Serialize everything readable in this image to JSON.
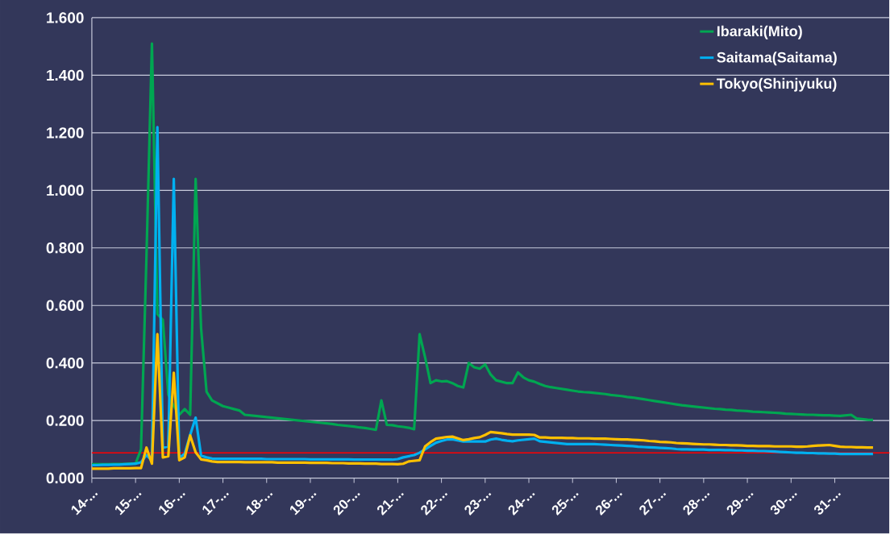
{
  "chart_data": {
    "type": "line",
    "categories": [
      "14-...",
      null,
      null,
      null,
      null,
      null,
      null,
      null,
      "15-...",
      null,
      null,
      null,
      null,
      null,
      null,
      null,
      "16-...",
      null,
      null,
      null,
      null,
      null,
      null,
      null,
      "17-...",
      null,
      null,
      null,
      null,
      null,
      null,
      null,
      "18-...",
      null,
      null,
      null,
      null,
      null,
      null,
      null,
      "19-...",
      null,
      null,
      null,
      null,
      null,
      null,
      null,
      "20-...",
      null,
      null,
      null,
      null,
      null,
      null,
      null,
      "21-...",
      null,
      null,
      null,
      null,
      null,
      null,
      null,
      "22-...",
      null,
      null,
      null,
      null,
      null,
      null,
      null,
      "23-...",
      null,
      null,
      null,
      null,
      null,
      null,
      null,
      "24-...",
      null,
      null,
      null,
      null,
      null,
      null,
      null,
      "25-...",
      null,
      null,
      null,
      null,
      null,
      null,
      null,
      "26-...",
      null,
      null,
      null,
      null,
      null,
      null,
      null,
      "27-...",
      null,
      null,
      null,
      null,
      null,
      null,
      null,
      "28-...",
      null,
      null,
      null,
      null,
      null,
      null,
      null,
      "29-...",
      null,
      null,
      null,
      null,
      null,
      null,
      null,
      "30-...",
      null,
      null,
      null,
      null,
      null,
      null,
      null,
      "31-...",
      null,
      null,
      null,
      null,
      null,
      null,
      null,
      null,
      null,
      null
    ],
    "ylim": [
      0,
      1.6
    ],
    "yticks": [
      {
        "value": 0,
        "label": "0.000"
      },
      {
        "value": 0.2,
        "label": "0.200"
      },
      {
        "value": 0.4,
        "label": "0.400"
      },
      {
        "value": 0.6,
        "label": "0.600"
      },
      {
        "value": 0.8,
        "label": "0.800"
      },
      {
        "value": 1.0,
        "label": "1.000"
      },
      {
        "value": 1.2,
        "label": "1.200"
      },
      {
        "value": 1.4,
        "label": "1.400"
      },
      {
        "value": 1.6,
        "label": "1.600"
      }
    ],
    "grid": "y",
    "legend": "top right",
    "marker": "none",
    "line_style": "solid",
    "ref_lines": [
      {
        "axis": "y",
        "value": 0.088,
        "color": "#ff0000"
      }
    ],
    "series": [
      {
        "name": "Ibaraki(Mito)",
        "color": "#00a651",
        "values": [
          0.048,
          0.048,
          0.048,
          0.048,
          0.049,
          0.049,
          0.049,
          0.05,
          0.05,
          0.1,
          0.77,
          1.51,
          0.57,
          0.55,
          0.29,
          0.25,
          0.22,
          0.24,
          0.22,
          1.04,
          0.52,
          0.3,
          0.27,
          0.26,
          0.25,
          0.245,
          0.24,
          0.235,
          0.22,
          0.218,
          0.216,
          0.214,
          0.212,
          0.21,
          0.208,
          0.206,
          0.204,
          0.202,
          0.2,
          0.198,
          0.196,
          0.194,
          0.192,
          0.19,
          0.188,
          0.185,
          0.183,
          0.181,
          0.179,
          0.176,
          0.174,
          0.171,
          0.168,
          0.27,
          0.185,
          0.184,
          0.18,
          0.178,
          0.175,
          0.17,
          0.5,
          0.42,
          0.33,
          0.34,
          0.336,
          0.337,
          0.33,
          0.32,
          0.315,
          0.4,
          0.385,
          0.38,
          0.395,
          0.36,
          0.34,
          0.335,
          0.33,
          0.33,
          0.367,
          0.35,
          0.34,
          0.335,
          0.327,
          0.32,
          0.316,
          0.313,
          0.31,
          0.307,
          0.304,
          0.301,
          0.299,
          0.298,
          0.296,
          0.294,
          0.292,
          0.289,
          0.287,
          0.285,
          0.282,
          0.28,
          0.277,
          0.274,
          0.271,
          0.268,
          0.265,
          0.262,
          0.259,
          0.256,
          0.253,
          0.251,
          0.249,
          0.247,
          0.245,
          0.243,
          0.241,
          0.24,
          0.238,
          0.237,
          0.235,
          0.234,
          0.233,
          0.231,
          0.23,
          0.229,
          0.228,
          0.227,
          0.226,
          0.224,
          0.223,
          0.222,
          0.221,
          0.22,
          0.22,
          0.219,
          0.218,
          0.218,
          0.217,
          0.216,
          0.218,
          0.22,
          0.207,
          0.205,
          0.203,
          0.202,
          null,
          null,
          null
        ]
      },
      {
        "name": "Saitama(Saitama)",
        "color": "#00b0f0",
        "values": [
          0.045,
          0.045,
          0.046,
          0.046,
          0.047,
          0.047,
          0.048,
          0.049,
          0.05,
          0.055,
          0.08,
          0.06,
          1.22,
          0.105,
          0.11,
          1.04,
          0.07,
          0.085,
          0.15,
          0.21,
          0.078,
          0.072,
          0.068,
          0.067,
          0.067,
          0.067,
          0.067,
          0.067,
          0.067,
          0.067,
          0.067,
          0.067,
          0.066,
          0.066,
          0.066,
          0.066,
          0.066,
          0.066,
          0.066,
          0.066,
          0.065,
          0.065,
          0.065,
          0.065,
          0.065,
          0.065,
          0.065,
          0.065,
          0.064,
          0.064,
          0.064,
          0.064,
          0.064,
          0.064,
          0.064,
          0.064,
          0.066,
          0.072,
          0.076,
          0.08,
          0.088,
          0.1,
          0.112,
          0.123,
          0.129,
          0.134,
          0.135,
          0.131,
          0.127,
          0.127,
          0.127,
          0.127,
          0.127,
          0.134,
          0.137,
          0.133,
          0.13,
          0.128,
          0.131,
          0.133,
          0.135,
          0.137,
          0.128,
          0.126,
          0.124,
          0.122,
          0.12,
          0.118,
          0.118,
          0.118,
          0.118,
          0.118,
          0.118,
          0.117,
          0.116,
          0.115,
          0.114,
          0.113,
          0.112,
          0.111,
          0.109,
          0.108,
          0.107,
          0.106,
          0.105,
          0.104,
          0.103,
          0.101,
          0.1,
          0.1,
          0.099,
          0.099,
          0.099,
          0.098,
          0.098,
          0.098,
          0.097,
          0.097,
          0.096,
          0.096,
          0.095,
          0.095,
          0.094,
          0.094,
          0.093,
          0.092,
          0.091,
          0.09,
          0.089,
          0.088,
          0.088,
          0.087,
          0.087,
          0.086,
          0.086,
          0.085,
          0.085,
          0.084,
          0.084,
          0.084,
          0.084,
          0.084,
          0.084,
          0.084,
          null,
          null,
          null
        ]
      },
      {
        "name": "Tokyo(Shinjyuku)",
        "color": "#ffc000",
        "values": [
          0.033,
          0.033,
          0.033,
          0.033,
          0.034,
          0.034,
          0.034,
          0.034,
          0.035,
          0.035,
          0.106,
          0.05,
          0.5,
          0.072,
          0.076,
          0.366,
          0.062,
          0.072,
          0.148,
          0.09,
          0.065,
          0.062,
          0.058,
          0.056,
          0.056,
          0.056,
          0.056,
          0.056,
          0.055,
          0.055,
          0.055,
          0.055,
          0.055,
          0.055,
          0.054,
          0.054,
          0.054,
          0.054,
          0.054,
          0.054,
          0.053,
          0.053,
          0.053,
          0.053,
          0.052,
          0.052,
          0.052,
          0.051,
          0.051,
          0.051,
          0.05,
          0.05,
          0.05,
          0.049,
          0.049,
          0.049,
          0.048,
          0.05,
          0.058,
          0.06,
          0.062,
          0.11,
          0.125,
          0.137,
          0.14,
          0.143,
          0.144,
          0.138,
          0.132,
          0.135,
          0.139,
          0.142,
          0.15,
          0.16,
          0.158,
          0.156,
          0.153,
          0.151,
          0.151,
          0.151,
          0.151,
          0.15,
          0.141,
          0.141,
          0.14,
          0.14,
          0.14,
          0.139,
          0.139,
          0.138,
          0.138,
          0.138,
          0.137,
          0.137,
          0.137,
          0.136,
          0.135,
          0.134,
          0.134,
          0.133,
          0.132,
          0.131,
          0.129,
          0.128,
          0.126,
          0.125,
          0.124,
          0.122,
          0.121,
          0.12,
          0.119,
          0.118,
          0.117,
          0.117,
          0.116,
          0.115,
          0.115,
          0.114,
          0.114,
          0.113,
          0.112,
          0.112,
          0.111,
          0.111,
          0.111,
          0.11,
          0.11,
          0.11,
          0.11,
          0.109,
          0.109,
          0.11,
          0.112,
          0.113,
          0.114,
          0.115,
          0.112,
          0.109,
          0.108,
          0.108,
          0.107,
          0.107,
          0.106,
          0.106,
          null,
          null,
          null
        ]
      }
    ]
  }
}
